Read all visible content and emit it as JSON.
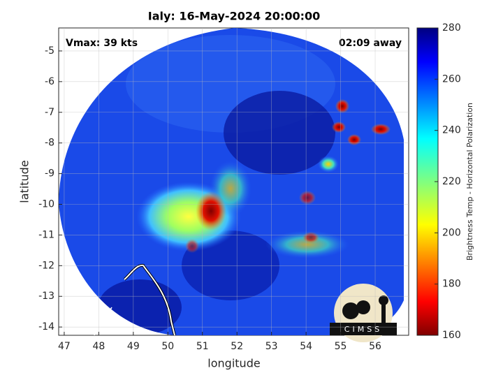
{
  "chart_data": {
    "type": "image",
    "title": "Ialy: 16-May-2024 20:00:00",
    "xlabel": "longitude",
    "ylabel": "latitude",
    "xlim": [
      46.84,
      56.97
    ],
    "xticks": [
      47,
      48,
      49,
      50,
      51,
      52,
      53,
      54,
      55,
      56
    ],
    "ylim": [
      -14.27,
      -4.25
    ],
    "yticks": [
      -14,
      -13,
      -12,
      -11,
      -10,
      -9,
      -8,
      -7,
      -6,
      -5
    ],
    "grid": true,
    "annotations": [
      "Vmax: 39 kts",
      "02:09 away"
    ],
    "logo": "CIMSS",
    "colorbar": {
      "label": "Brightness Temp - Horizontal Polarization",
      "lim": [
        160,
        280
      ],
      "ticks": [
        160,
        180,
        200,
        220,
        240,
        260,
        280
      ]
    }
  }
}
